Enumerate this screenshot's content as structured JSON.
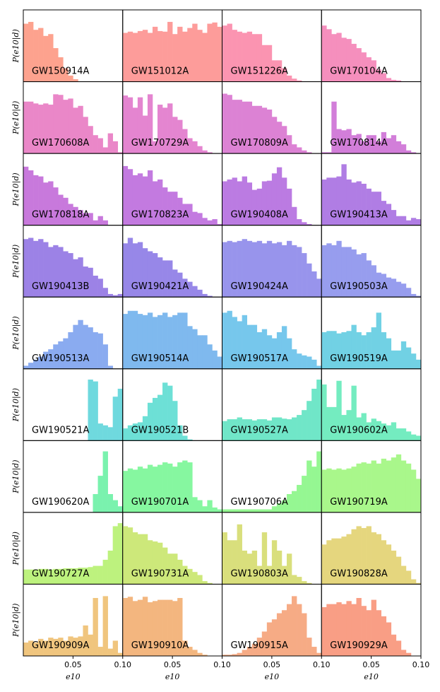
{
  "chart_data": {
    "type": "bar",
    "subtype": "histogram-grid",
    "title": "",
    "ylabel": "P(e10|d)",
    "xlabel": "e10",
    "xlim": [
      0,
      0.1
    ],
    "ylim": [
      0,
      1
    ],
    "xticks": [
      0.05,
      0.1
    ],
    "xtick_labels": [
      "0.05",
      "0.10"
    ],
    "grid": false,
    "rows": 9,
    "cols": 4,
    "panels": [
      {
        "name": "GW150914A",
        "color": "#fda28e",
        "values": [
          0.95,
          0.98,
          0.85,
          0.88,
          0.75,
          0.78,
          0.55,
          0.4,
          0.22,
          0.1,
          0.04,
          0,
          0,
          0,
          0,
          0,
          0,
          0,
          0,
          0
        ]
      },
      {
        "name": "GW151012A",
        "color": "#fd9c9a",
        "values": [
          0.8,
          0.82,
          0.8,
          0.83,
          0.85,
          0.8,
          0.9,
          0.83,
          0.82,
          0.98,
          0.78,
          0.9,
          0.82,
          0.88,
          0.95,
          0.85,
          0.8,
          0.95,
          0.97,
          0.9
        ]
      },
      {
        "name": "GW151226A",
        "color": "#fb94b1",
        "values": [
          0.92,
          0.95,
          0.85,
          0.82,
          0.8,
          0.82,
          0.78,
          0.78,
          0.6,
          0.6,
          0.35,
          0.35,
          0.22,
          0.1,
          0.05,
          0.02,
          0,
          0,
          0,
          0
        ]
      },
      {
        "name": "GW170104A",
        "color": "#f58fbd",
        "values": [
          0.92,
          0.86,
          0.78,
          0.8,
          0.72,
          0.7,
          0.62,
          0.55,
          0.48,
          0.4,
          0.35,
          0.2,
          0.14,
          0.06,
          0.03,
          0.02,
          0,
          0,
          0,
          0
        ]
      },
      {
        "name": "GW170608A",
        "color": "#ea87c8",
        "values": [
          0.85,
          0.85,
          0.82,
          0.8,
          0.82,
          0.8,
          0.97,
          0.96,
          0.88,
          0.9,
          0.75,
          0.78,
          0.6,
          0.45,
          0.3,
          0.25,
          0.1,
          0.33,
          0.2,
          0.02
        ]
      },
      {
        "name": "GW170729A",
        "color": "#e485d0",
        "values": [
          0.95,
          0.92,
          0.75,
          0.92,
          0.62,
          0.97,
          0.2,
          0.8,
          0.75,
          0.82,
          0.6,
          0.55,
          0.4,
          0.25,
          0.2,
          0.12,
          0.05,
          0.02,
          0,
          0
        ]
      },
      {
        "name": "GW170809A",
        "color": "#dc82d4",
        "values": [
          0.98,
          0.96,
          0.88,
          0.88,
          0.85,
          0.85,
          0.78,
          0.78,
          0.75,
          0.72,
          0.6,
          0.52,
          0.45,
          0.3,
          0.15,
          0.1,
          0.05,
          0.02,
          0,
          0
        ]
      },
      {
        "name": "GW170814A",
        "color": "#d27ed9",
        "values": [
          0.02,
          0.02,
          0.85,
          0.4,
          0.38,
          0.4,
          0.3,
          0.32,
          0.2,
          0.3,
          0.3,
          0.2,
          0.35,
          0.25,
          0.3,
          0.2,
          0.15,
          0.05,
          0.02,
          0
        ]
      },
      {
        "name": "GW170818A",
        "color": "#c879dc",
        "values": [
          0.96,
          0.9,
          0.82,
          0.8,
          0.7,
          0.72,
          0.62,
          0.5,
          0.45,
          0.35,
          0.3,
          0.25,
          0.2,
          0.2,
          0.08,
          0.15,
          0.08,
          0,
          0,
          0
        ]
      },
      {
        "name": "GW170823A",
        "color": "#c37ae0",
        "values": [
          0.97,
          0.92,
          0.82,
          0.85,
          0.8,
          0.9,
          0.72,
          0.75,
          0.62,
          0.55,
          0.55,
          0.45,
          0.35,
          0.35,
          0.22,
          0.2,
          0.12,
          0.08,
          0.1,
          0.02
        ]
      },
      {
        "name": "GW190408A",
        "color": "#bb7be2",
        "values": [
          0.72,
          0.75,
          0.78,
          0.72,
          0.8,
          0.7,
          0.58,
          0.6,
          0.72,
          0.73,
          0.85,
          0.95,
          0.78,
          0.6,
          0.3,
          0.1,
          0.05,
          0.02,
          0,
          0
        ]
      },
      {
        "name": "GW190413A",
        "color": "#b07de4",
        "values": [
          0.75,
          0.78,
          0.78,
          0.8,
          1.0,
          0.75,
          0.7,
          0.72,
          0.68,
          0.6,
          0.55,
          0.55,
          0.4,
          0.35,
          0.25,
          0.15,
          0.15,
          0.08,
          0.12,
          0.1
        ]
      },
      {
        "name": "GW190413B",
        "color": "#9c82e6",
        "values": [
          0.95,
          0.97,
          0.92,
          0.95,
          0.9,
          0.82,
          0.85,
          0.82,
          0.75,
          0.72,
          0.62,
          0.65,
          0.5,
          0.48,
          0.35,
          0.3,
          0.15,
          0.05,
          0.03,
          0.05
        ]
      },
      {
        "name": "GW190421A",
        "color": "#9787e8",
        "values": [
          0.88,
          0.97,
          0.88,
          0.9,
          0.8,
          0.75,
          0.72,
          0.65,
          0.6,
          0.6,
          0.45,
          0.4,
          0.3,
          0.25,
          0.18,
          0.12,
          0.05,
          0.02,
          0,
          0
        ]
      },
      {
        "name": "GW190424A",
        "color": "#9894ec",
        "values": [
          0.9,
          0.92,
          0.9,
          0.92,
          0.95,
          0.92,
          0.9,
          0.92,
          0.88,
          0.92,
          0.88,
          0.9,
          0.85,
          0.92,
          0.85,
          0.82,
          0.72,
          0.55,
          0.42,
          0.3
        ]
      },
      {
        "name": "GW190503A",
        "color": "#979dee",
        "values": [
          0.85,
          0.88,
          0.85,
          0.92,
          0.82,
          0.82,
          0.78,
          0.7,
          0.72,
          0.6,
          0.52,
          0.4,
          0.38,
          0.32,
          0.3,
          0.25,
          0.22,
          0.15,
          0.05,
          0.02
        ]
      },
      {
        "name": "GW190513A",
        "color": "#8aabf0",
        "values": [
          0.05,
          0.1,
          0.15,
          0.2,
          0.28,
          0.32,
          0.4,
          0.45,
          0.5,
          0.6,
          0.72,
          0.8,
          0.72,
          0.68,
          0.6,
          0.58,
          0.4,
          0.05,
          0,
          0
        ]
      },
      {
        "name": "GW190514A",
        "color": "#7fb9ee",
        "values": [
          0.9,
          0.95,
          0.95,
          0.9,
          0.88,
          0.92,
          0.85,
          0.88,
          0.92,
          0.85,
          0.88,
          0.92,
          0.92,
          0.7,
          0.65,
          0.55,
          0.55,
          0.4,
          0.3,
          0.2
        ]
      },
      {
        "name": "GW190517A",
        "color": "#76c7ec",
        "values": [
          0.92,
          0.95,
          0.85,
          0.78,
          0.88,
          0.72,
          0.72,
          0.6,
          0.65,
          0.55,
          0.5,
          0.6,
          0.7,
          0.5,
          0.32,
          0.25,
          0.22,
          0.2,
          0.15,
          0.05
        ]
      },
      {
        "name": "GW190519A",
        "color": "#71d1e4",
        "values": [
          0.6,
          0.62,
          0.62,
          0.58,
          0.6,
          0.62,
          0.72,
          0.6,
          0.55,
          0.6,
          0.68,
          0.92,
          0.6,
          0.5,
          0.3,
          0.3,
          0.45,
          0.35,
          0.25,
          0.15
        ]
      },
      {
        "name": "GW190521A",
        "color": "#6fd9de",
        "values": [
          0,
          0,
          0,
          0,
          0,
          0,
          0,
          0,
          0,
          0,
          0,
          0,
          0,
          1.0,
          0.97,
          0.28,
          0.25,
          0.22,
          0.72,
          0.85
        ]
      },
      {
        "name": "GW190521B",
        "color": "#6de0d6",
        "values": [
          0.2,
          0.25,
          0.28,
          0.3,
          0.4,
          0.62,
          0.7,
          0.75,
          0.95,
          0.9,
          0.65,
          0.25,
          0.08,
          0.02,
          0,
          0,
          0,
          0,
          0,
          0
        ]
      },
      {
        "name": "GW190527A",
        "color": "#70e6c8",
        "values": [
          0.32,
          0.35,
          0.35,
          0.38,
          0.35,
          0.35,
          0.33,
          0.35,
          0.35,
          0.33,
          0.38,
          0.38,
          0.36,
          0.35,
          0.38,
          0.42,
          0.5,
          0.65,
          0.85,
          1.0
        ]
      },
      {
        "name": "GW190602A",
        "color": "#74ecc0",
        "values": [
          0.92,
          0.55,
          0.55,
          0.98,
          0.42,
          0.5,
          0.9,
          0.38,
          0.45,
          0.3,
          0.36,
          0.32,
          0.28,
          0.25,
          0.3,
          0.2,
          0.2,
          0.15,
          0.1,
          0.08
        ]
      },
      {
        "name": "GW190620A",
        "color": "#7af2ae",
        "values": [
          0,
          0,
          0,
          0,
          0,
          0,
          0,
          0,
          0,
          0,
          0,
          0,
          0,
          0,
          0.3,
          0.6,
          1.0,
          0.3,
          0.2,
          0.1
        ]
      },
      {
        "name": "GW190701A",
        "color": "#86f7a0",
        "values": [
          0.68,
          0.72,
          0.7,
          0.75,
          0.72,
          0.78,
          0.75,
          0.78,
          0.82,
          0.8,
          0.75,
          0.82,
          0.85,
          0.82,
          0.25,
          0.2,
          0.1,
          0.2,
          0.08,
          0.05
        ]
      },
      {
        "name": "GW190706A",
        "color": "#95f792",
        "values": [
          0.05,
          0.05,
          0.05,
          0.05,
          0.05,
          0.05,
          0.05,
          0.05,
          0.05,
          0.05,
          0.1,
          0.15,
          0.2,
          0.3,
          0.35,
          0.45,
          0.6,
          0.85,
          0.75,
          1.0
        ]
      },
      {
        "name": "GW190719A",
        "color": "#a9f78b",
        "values": [
          0.7,
          0.72,
          0.7,
          0.72,
          0.7,
          0.72,
          0.75,
          0.8,
          0.82,
          0.8,
          0.85,
          0.8,
          0.88,
          0.85,
          0.9,
          0.95,
          0.85,
          0.8,
          0.7,
          0.55
        ]
      },
      {
        "name": "GW190727A",
        "color": "#bdf27e",
        "values": [
          0.24,
          0.24,
          0.24,
          0.25,
          0.25,
          0.24,
          0.25,
          0.25,
          0.26,
          0.26,
          0.26,
          0.27,
          0.27,
          0.28,
          0.3,
          0.3,
          0.4,
          0.55,
          0.95,
          1.0
        ]
      },
      {
        "name": "GW190731A",
        "color": "#cde87a",
        "values": [
          0.95,
          0.93,
          0.85,
          0.82,
          0.82,
          0.72,
          0.7,
          0.68,
          0.6,
          0.5,
          0.5,
          0.4,
          0.3,
          0.25,
          0.2,
          0.15,
          0.05,
          0.02,
          0,
          0
        ]
      },
      {
        "name": "GW190803A",
        "color": "#d9df7c",
        "values": [
          0.85,
          0.72,
          0.72,
          0.98,
          0.55,
          0.5,
          0.55,
          0.3,
          0.85,
          0.3,
          0.72,
          0.55,
          0.3,
          0.5,
          0.15,
          0.12,
          0.05,
          0.02,
          0,
          0
        ]
      },
      {
        "name": "GW190828A",
        "color": "#e5d67e",
        "values": [
          0.65,
          0.72,
          0.75,
          0.75,
          0.78,
          0.82,
          0.9,
          0.95,
          0.92,
          0.95,
          0.85,
          0.82,
          0.72,
          0.65,
          0.55,
          0.45,
          0.3,
          0.22,
          0.08,
          0.02
        ]
      },
      {
        "name": "GW190909A",
        "color": "#f0c57e",
        "values": [
          0.22,
          0.25,
          0.22,
          0.28,
          0.25,
          0.3,
          0.28,
          0.3,
          0.25,
          0.32,
          0.3,
          0.32,
          0.5,
          0.35,
          0.95,
          0.15,
          0.98,
          0.12,
          0.25,
          0.05
        ]
      },
      {
        "name": "GW190910A",
        "color": "#f3b67f",
        "values": [
          0.95,
          0.97,
          0.9,
          0.92,
          0.97,
          0.88,
          0.9,
          0.92,
          0.92,
          0.92,
          0.9,
          0.95,
          0.25,
          0.15,
          0.1,
          0.05,
          0.02,
          0,
          0,
          0
        ]
      },
      {
        "name": "GW190915A",
        "color": "#f6ab85",
        "values": [
          0.02,
          0.02,
          0.03,
          0.05,
          0.1,
          0.15,
          0.2,
          0.3,
          0.4,
          0.55,
          0.6,
          0.7,
          0.75,
          0.85,
          0.98,
          0.85,
          0.7,
          0.3,
          0.15,
          0.05
        ]
      },
      {
        "name": "GW190929A",
        "color": "#f99e85",
        "values": [
          0.8,
          0.85,
          0.85,
          0.88,
          0.85,
          0.9,
          0.85,
          0.95,
          0.82,
          0.75,
          0.92,
          0.75,
          0.65,
          0.55,
          0.35,
          0.25,
          0.1,
          0.05,
          0,
          0
        ]
      }
    ]
  }
}
